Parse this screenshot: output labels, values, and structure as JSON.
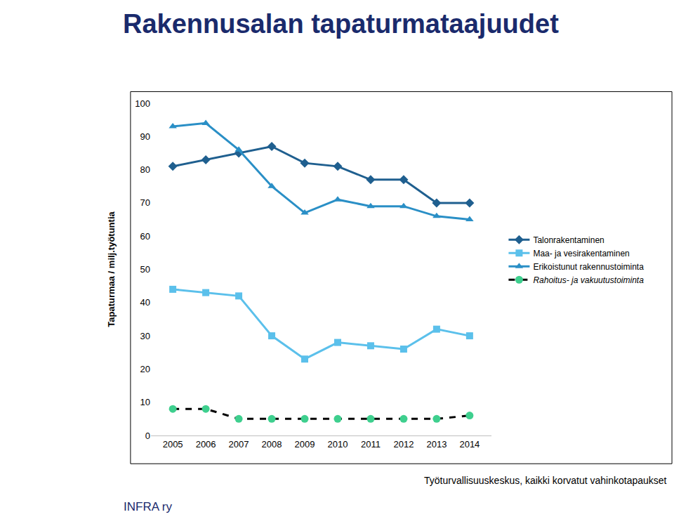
{
  "chart_data": {
    "type": "line",
    "title": "Rakennusalan tapaturmataajuudet",
    "y_label": "Tapaturmaa / milj.työtuntia",
    "categories": [
      "2005",
      "2006",
      "2007",
      "2008",
      "2009",
      "2010",
      "2011",
      "2012",
      "2013",
      "2014"
    ],
    "series": [
      {
        "name": "Talonrakentaminen",
        "color": "#1f5f8f",
        "marker": "diamond",
        "line_style": "solid",
        "values": [
          81,
          83,
          85,
          87,
          82,
          81,
          77,
          77,
          70,
          70
        ]
      },
      {
        "name": "Maa- ja vesirakentaminen",
        "color": "#5bc0eb",
        "marker": "square",
        "line_style": "solid",
        "values": [
          44,
          43,
          42,
          30,
          23,
          28,
          27,
          26,
          32,
          30
        ]
      },
      {
        "name": "Erikoistunut rakennustoiminta",
        "color": "#2a8fc6",
        "marker": "triangle-up",
        "line_style": "solid",
        "values": [
          93,
          94,
          86,
          75,
          67,
          71,
          69,
          69,
          66,
          65
        ]
      },
      {
        "name": "Rahoitus- ja vakuutustoiminta",
        "color": "#3ecf8e",
        "marker": "circle",
        "line_style": "dashed",
        "values": [
          8,
          8,
          5,
          5,
          5,
          5,
          5,
          5,
          5,
          6
        ]
      }
    ],
    "ylim": [
      0,
      100
    ],
    "yticks": [
      0,
      10,
      20,
      30,
      40,
      50,
      60,
      70,
      80,
      90,
      100
    ],
    "grid": false,
    "legend": "right",
    "annotations": [
      "Työturvallisuuskeskus, kaikki korvatut vahinkotapaukset",
      "INFRA ry"
    ]
  }
}
